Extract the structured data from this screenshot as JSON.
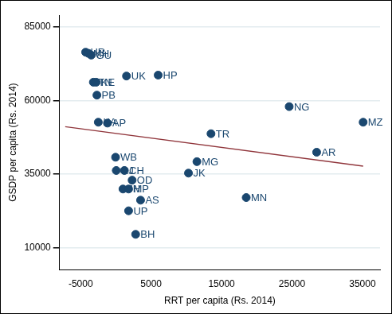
{
  "chart_data": {
    "type": "scatter",
    "x_label": "RRT per capita (Rs. 2014)",
    "y_label": "GSDP per capita (Rs. 2014)",
    "xlim": [
      -8000,
      37500
    ],
    "ylim": [
      2500,
      89000
    ],
    "xticks": [
      -5000,
      5000,
      15000,
      25000,
      35000
    ],
    "yticks": [
      10000,
      35000,
      60000,
      85000
    ],
    "grid": true,
    "color": "#1a476f",
    "marker": "circle",
    "points": [
      {
        "label": "HR",
        "x": -4300,
        "y": 76400
      },
      {
        "label": "MH",
        "x": -3900,
        "y": 76000
      },
      {
        "label": "GU",
        "x": -3500,
        "y": 75400
      },
      {
        "label": "TN",
        "x": -3200,
        "y": 66200
      },
      {
        "label": "KE",
        "x": -2800,
        "y": 66200
      },
      {
        "label": "PB",
        "x": -2700,
        "y": 61800
      },
      {
        "label": "UK",
        "x": 1500,
        "y": 68300
      },
      {
        "label": "HP",
        "x": 6000,
        "y": 68600
      },
      {
        "label": "KA",
        "x": -2500,
        "y": 52600
      },
      {
        "label": "AP",
        "x": -1200,
        "y": 52300
      },
      {
        "label": "TR",
        "x": 13500,
        "y": 48700
      },
      {
        "label": "NG",
        "x": 24600,
        "y": 57900
      },
      {
        "label": "MZ",
        "x": 35100,
        "y": 52600
      },
      {
        "label": "AR",
        "x": 28500,
        "y": 42400
      },
      {
        "label": "WB",
        "x": -50,
        "y": 40700
      },
      {
        "label": "MG",
        "x": 11500,
        "y": 39200
      },
      {
        "label": "JK",
        "x": 10300,
        "y": 35300
      },
      {
        "label": "RJ",
        "x": 50,
        "y": 36200
      },
      {
        "label": "CH",
        "x": 1200,
        "y": 36200
      },
      {
        "label": "OD",
        "x": 2300,
        "y": 32900
      },
      {
        "label": "JH",
        "x": 1000,
        "y": 29900
      },
      {
        "label": "MP",
        "x": 1800,
        "y": 29900
      },
      {
        "label": "AS",
        "x": 3500,
        "y": 26100
      },
      {
        "label": "MN",
        "x": 18500,
        "y": 27000
      },
      {
        "label": "UP",
        "x": 1800,
        "y": 22500
      },
      {
        "label": "BH",
        "x": 2800,
        "y": 14500
      }
    ],
    "fit_line": {
      "x": [
        -7200,
        35100
      ],
      "y": [
        51070,
        37670
      ],
      "color": "#90353b",
      "line_style": "solid"
    }
  }
}
